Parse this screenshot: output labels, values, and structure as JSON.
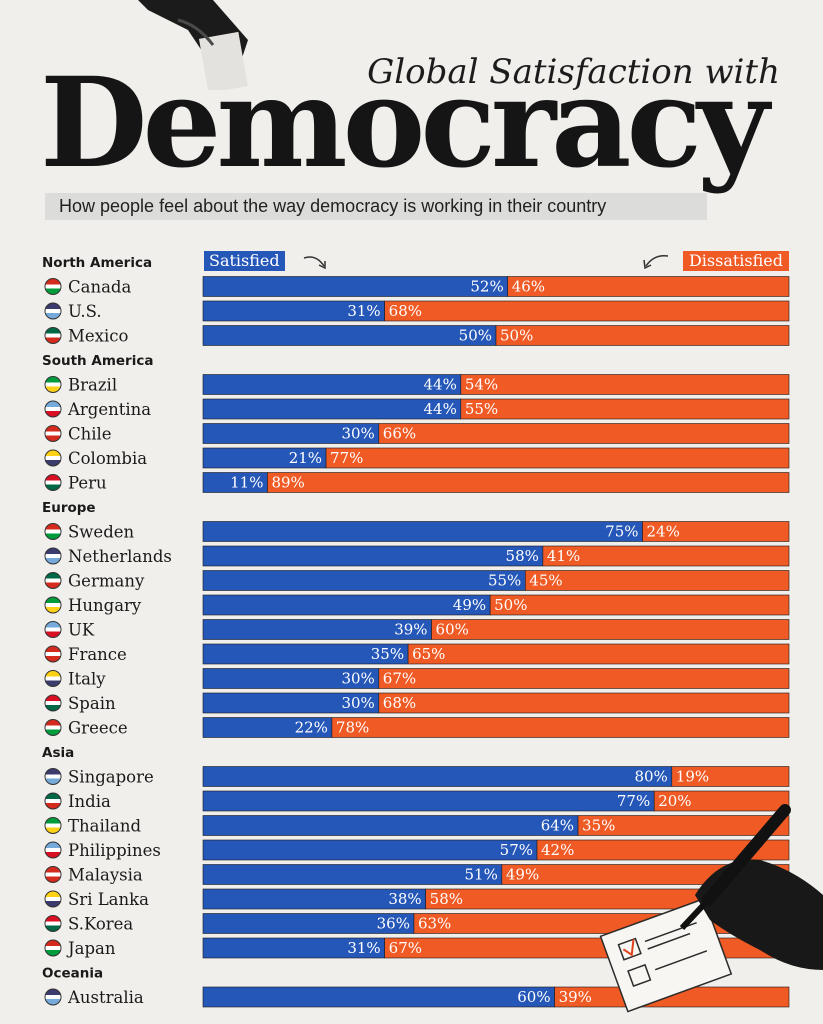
{
  "header": {
    "title_line": "Global Satisfaction with",
    "title_main": "Democracy",
    "subtitle": "How people feel about the way democracy is working in their country"
  },
  "colors": {
    "satisfied": "#2557b8",
    "dissatisfied": "#f05a24",
    "background": "#f1efeb"
  },
  "chart_data": {
    "type": "bar",
    "orientation": "horizontal-stacked",
    "legend_position": "top",
    "x_unit": "%",
    "series": [
      {
        "name": "Satisfied"
      },
      {
        "name": "Dissatisfied"
      }
    ],
    "groups": [
      {
        "region": "North America",
        "countries": [
          {
            "name": "Canada",
            "satisfied": 52,
            "dissatisfied": 46
          },
          {
            "name": "U.S.",
            "satisfied": 31,
            "dissatisfied": 68
          },
          {
            "name": "Mexico",
            "satisfied": 50,
            "dissatisfied": 50
          }
        ]
      },
      {
        "region": "South America",
        "countries": [
          {
            "name": "Brazil",
            "satisfied": 44,
            "dissatisfied": 54
          },
          {
            "name": "Argentina",
            "satisfied": 44,
            "dissatisfied": 55
          },
          {
            "name": "Chile",
            "satisfied": 30,
            "dissatisfied": 66
          },
          {
            "name": "Colombia",
            "satisfied": 21,
            "dissatisfied": 77
          },
          {
            "name": "Peru",
            "satisfied": 11,
            "dissatisfied": 89
          }
        ]
      },
      {
        "region": "Europe",
        "countries": [
          {
            "name": "Sweden",
            "satisfied": 75,
            "dissatisfied": 24
          },
          {
            "name": "Netherlands",
            "satisfied": 58,
            "dissatisfied": 41
          },
          {
            "name": "Germany",
            "satisfied": 55,
            "dissatisfied": 45
          },
          {
            "name": "Hungary",
            "satisfied": 49,
            "dissatisfied": 50
          },
          {
            "name": "UK",
            "satisfied": 39,
            "dissatisfied": 60
          },
          {
            "name": "France",
            "satisfied": 35,
            "dissatisfied": 65
          },
          {
            "name": "Italy",
            "satisfied": 30,
            "dissatisfied": 67
          },
          {
            "name": "Spain",
            "satisfied": 30,
            "dissatisfied": 68
          },
          {
            "name": "Greece",
            "satisfied": 22,
            "dissatisfied": 78
          }
        ]
      },
      {
        "region": "Asia",
        "countries": [
          {
            "name": "Singapore",
            "satisfied": 80,
            "dissatisfied": 19
          },
          {
            "name": "India",
            "satisfied": 77,
            "dissatisfied": 20
          },
          {
            "name": "Thailand",
            "satisfied": 64,
            "dissatisfied": 35
          },
          {
            "name": "Philippines",
            "satisfied": 57,
            "dissatisfied": 42
          },
          {
            "name": "Malaysia",
            "satisfied": 51,
            "dissatisfied": 49
          },
          {
            "name": "Sri Lanka",
            "satisfied": 38,
            "dissatisfied": 58
          },
          {
            "name": "S.Korea",
            "satisfied": 36,
            "dissatisfied": 63
          },
          {
            "name": "Japan",
            "satisfied": 31,
            "dissatisfied": 67
          }
        ]
      },
      {
        "region": "Oceania",
        "countries": [
          {
            "name": "Australia",
            "satisfied": 60,
            "dissatisfied": 39
          }
        ]
      }
    ]
  }
}
